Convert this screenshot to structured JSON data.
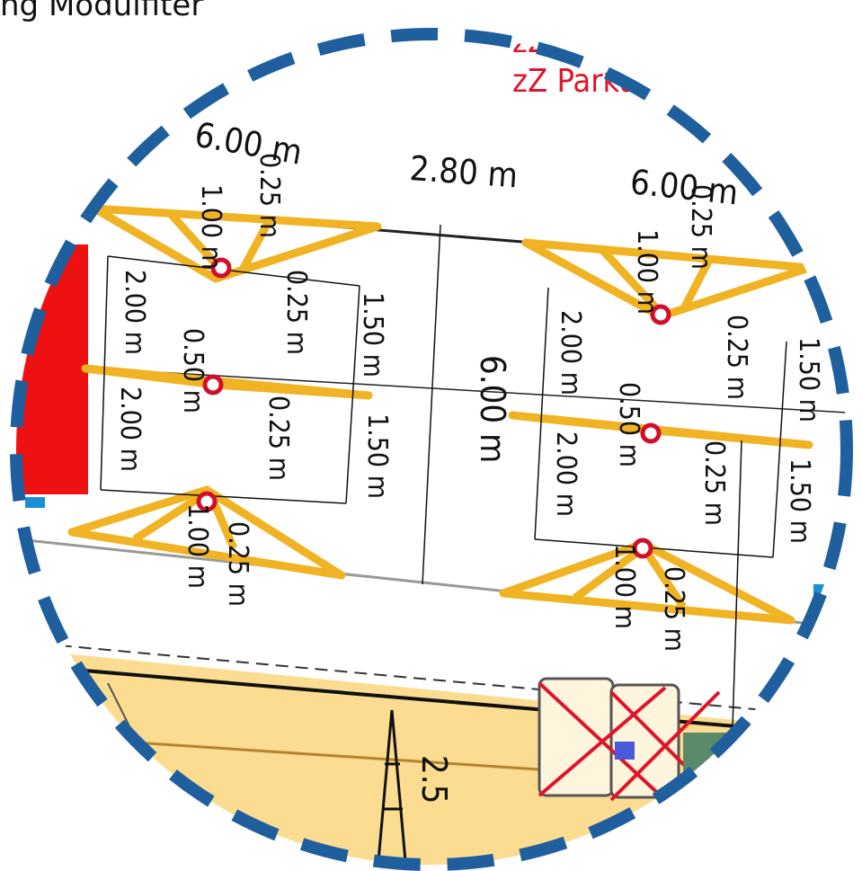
{
  "caption": "ng Modulfiter",
  "labels_top": {
    "zz1": "zZ C",
    "zz2": "zZ Parku"
  },
  "dimensions": {
    "left_width": "6.00 m",
    "center_gap": "2.80 m",
    "right_width": "6.00 m",
    "center_length": "6.00 m",
    "d025": "0.25 m",
    "d100": "1.00 m",
    "d150": "1.50 m",
    "d200": "2.00 m",
    "d050": "0.50 m"
  },
  "road_marking": "2.5",
  "colors": {
    "marking_yellow": "#f0b323",
    "dash_blue": "#1f5f9e",
    "block_red": "#ee1111",
    "road_tan": "#fbdc90",
    "pin_red": "#d0102a"
  }
}
